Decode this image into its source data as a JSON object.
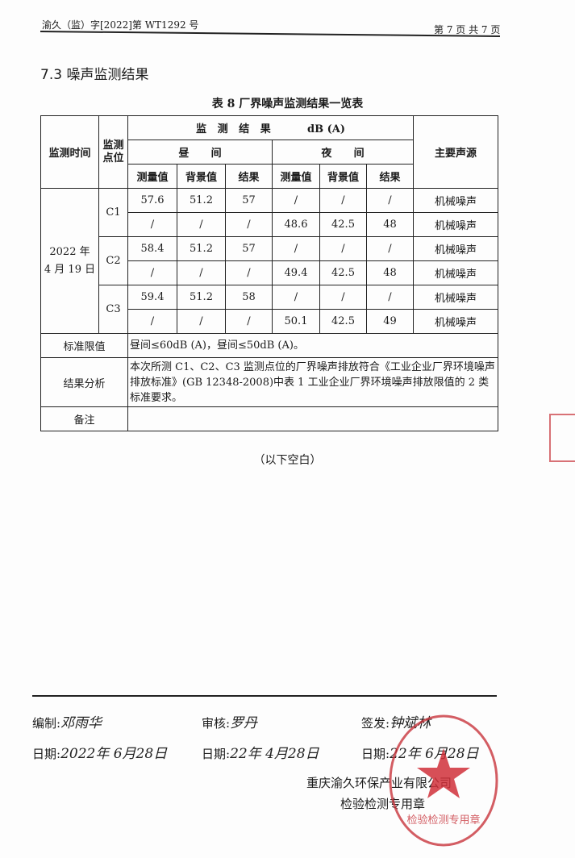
{
  "header": {
    "report_no": "渝久（监）字[2022]第 WT1292 号",
    "page": "第 7 页 共 7 页"
  },
  "section_title": "7.3 噪声监测结果",
  "table_caption": "表 8  厂界噪声监测结果一览表",
  "table": {
    "h_time": "监测时间",
    "h_point": "监测点位",
    "h_group": "监   测   结   果          dB (A)",
    "h_day": "昼      间",
    "h_night": "夜      间",
    "h_source": "主要声源",
    "sub": [
      "测量值",
      "背景值",
      "结果",
      "测量值",
      "背景值",
      "结果"
    ],
    "date": "2022 年\n4 月 19 日",
    "rows": [
      {
        "point": "C1",
        "v": [
          "57.6",
          "51.2",
          "57",
          "/",
          "/",
          "/"
        ],
        "source": "机械噪声"
      },
      {
        "point": "",
        "v": [
          "/",
          "/",
          "/",
          "48.6",
          "42.5",
          "48"
        ],
        "source": "机械噪声"
      },
      {
        "point": "C2",
        "v": [
          "58.4",
          "51.2",
          "57",
          "/",
          "/",
          "/"
        ],
        "source": "机械噪声"
      },
      {
        "point": "",
        "v": [
          "/",
          "/",
          "/",
          "49.4",
          "42.5",
          "48"
        ],
        "source": "机械噪声"
      },
      {
        "point": "C3",
        "v": [
          "59.4",
          "51.2",
          "58",
          "/",
          "/",
          "/"
        ],
        "source": "机械噪声"
      },
      {
        "point": "",
        "v": [
          "/",
          "/",
          "/",
          "50.1",
          "42.5",
          "49"
        ],
        "source": "机械噪声"
      }
    ],
    "limit_label": "标准限值",
    "limit_value": "昼间≤60dB (A)，昼间≤50dB (A)。",
    "analysis_label": "结果分析",
    "analysis_value": "本次所测 C1、C2、C3 监测点位的厂界噪声排放符合《工业企业厂界环境噪声排放标准》(GB 12348-2008)中表 1 工业企业厂界环境噪声排放限值的 2 类标准要求。",
    "notes_label": "备注",
    "notes_value": ""
  },
  "blank_note": "（以下空白）",
  "signatures": {
    "compiled_label": "编制:",
    "compiled_by": "邓雨华",
    "reviewed_label": "审核:",
    "reviewed_by": "罗丹",
    "issued_label": "签发:",
    "issued_by": "钟斌林",
    "date_label": "日期:",
    "dates": [
      "2022年 6月28日",
      "22年 4月28日",
      "22年 6月28日"
    ]
  },
  "company": {
    "name": "重庆渝久环保产业有限公司",
    "seal_line": "检验检测专用章"
  },
  "stamp": {
    "text": "重庆渝久环保产业有限公司",
    "bottom": "检验检测专用章",
    "color": "#c8343c"
  }
}
